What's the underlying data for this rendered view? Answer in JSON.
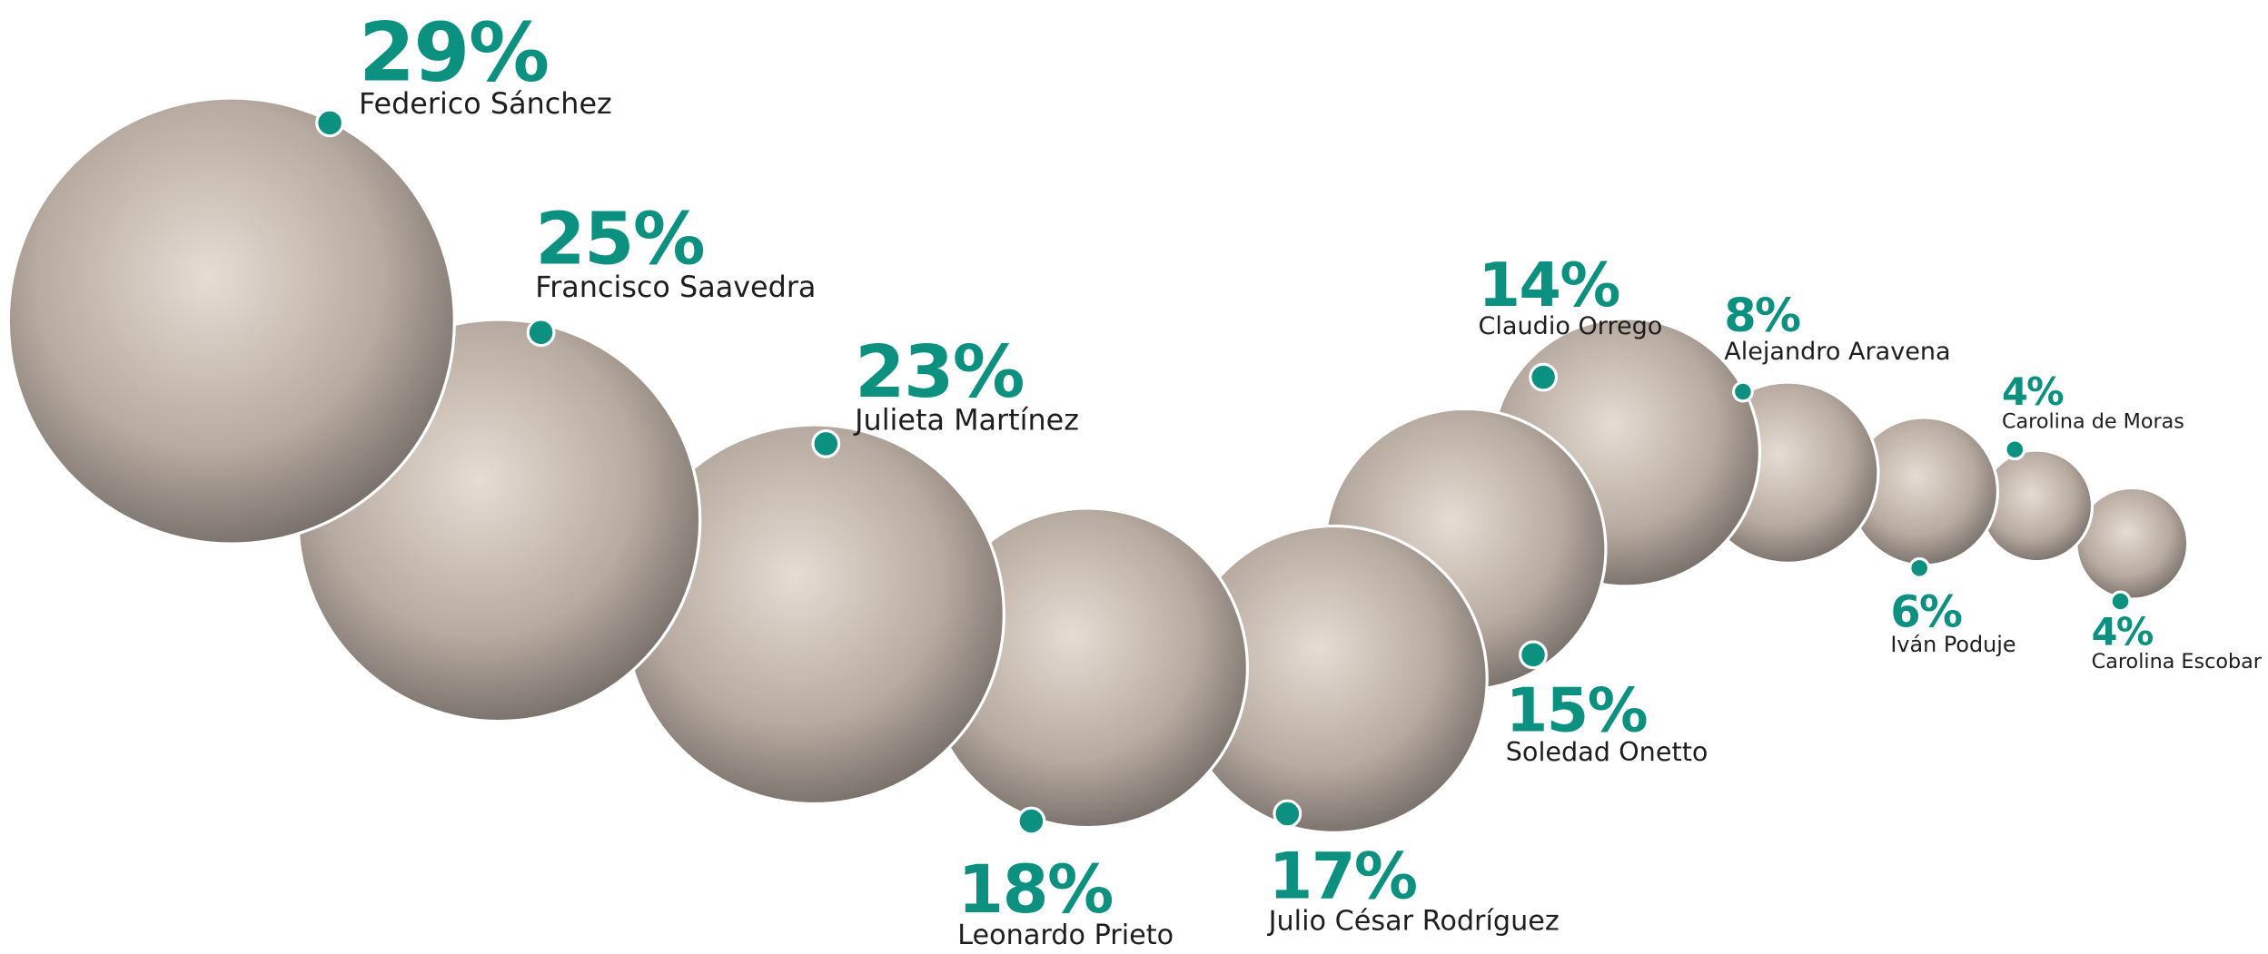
{
  "chart_data": {
    "type": "bubble",
    "categories": [
      "Federico Sánchez",
      "Francisco Saavedra",
      "Julieta Martínez",
      "Leonardo Prieto",
      "Julio César Rodríguez",
      "Soledad Onetto",
      "Claudio Orrego",
      "Alejandro Aravena",
      "Iván Poduje",
      "Carolina de Moras",
      "Carolina Escobar"
    ],
    "values": [
      29,
      25,
      23,
      18,
      17,
      15,
      14,
      8,
      6,
      4,
      4
    ],
    "value_labels": [
      "29%",
      "25%",
      "23%",
      "18%",
      "17%",
      "15%",
      "14%",
      "8%",
      "6%",
      "4%",
      "4%"
    ],
    "color": "#0c9180"
  }
}
